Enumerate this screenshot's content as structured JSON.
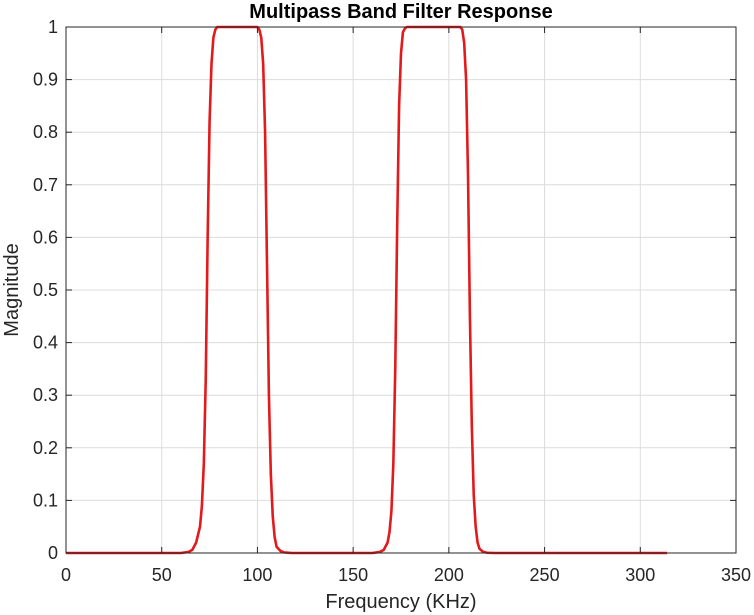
{
  "chart_data": {
    "type": "line",
    "title": "Multipass Band Filter Response",
    "xlabel": "Frequency (KHz)",
    "ylabel": "Magnitude",
    "xlim": [
      0,
      350
    ],
    "ylim": [
      0,
      1
    ],
    "xticks": [
      0,
      50,
      100,
      150,
      200,
      250,
      300,
      350
    ],
    "yticks": [
      0,
      0.1,
      0.2,
      0.3,
      0.4,
      0.5,
      0.6,
      0.7,
      0.8,
      0.9,
      1
    ],
    "xtick_labels": [
      "0",
      "50",
      "100",
      "150",
      "200",
      "250",
      "300",
      "350"
    ],
    "ytick_labels": [
      "0",
      "0.1",
      "0.2",
      "0.3",
      "0.4",
      "0.5",
      "0.6",
      "0.7",
      "0.8",
      "0.9",
      "1"
    ],
    "grid": true,
    "series": [
      {
        "color": "#e31a1c",
        "x": [
          0,
          60,
          64,
          66,
          68,
          70,
          71,
          72,
          73,
          74,
          75,
          76,
          77,
          78,
          79,
          80,
          100,
          101,
          102,
          103,
          104,
          105,
          106,
          107,
          108,
          109,
          110,
          112,
          114,
          118,
          123,
          160,
          164,
          166,
          168,
          169,
          170,
          171,
          172,
          173,
          174,
          175,
          176,
          177,
          178,
          180,
          206,
          207,
          208,
          209,
          210,
          211,
          212,
          213,
          214,
          215,
          216,
          218,
          220,
          224,
          228,
          314
        ],
        "y": [
          0,
          0,
          0.002,
          0.006,
          0.02,
          0.05,
          0.09,
          0.17,
          0.33,
          0.6,
          0.82,
          0.93,
          0.98,
          0.995,
          1,
          1,
          1,
          0.995,
          0.98,
          0.93,
          0.8,
          0.55,
          0.3,
          0.15,
          0.07,
          0.03,
          0.012,
          0.004,
          0.001,
          0,
          0,
          0,
          0.002,
          0.006,
          0.02,
          0.04,
          0.08,
          0.17,
          0.35,
          0.62,
          0.85,
          0.95,
          0.99,
          0.997,
          1,
          1,
          1,
          0.995,
          0.97,
          0.9,
          0.72,
          0.45,
          0.24,
          0.11,
          0.05,
          0.02,
          0.008,
          0.002,
          0.0005,
          0,
          0,
          0
        ]
      }
    ]
  }
}
